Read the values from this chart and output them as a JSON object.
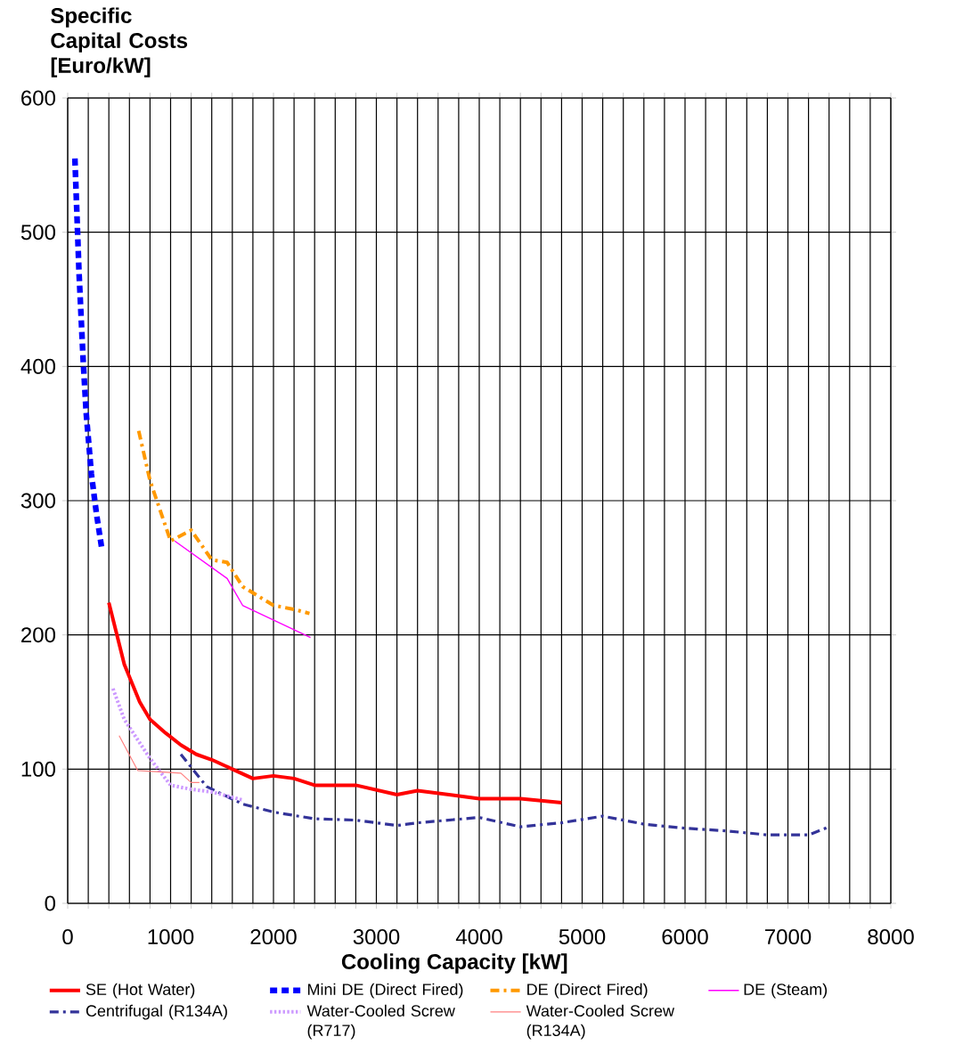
{
  "chart_data": {
    "type": "line",
    "ylabel": "Specific Capital Costs [Euro/kW]",
    "xlabel": "Cooling Capacity [kW]",
    "xlim": [
      0,
      8000
    ],
    "ylim": [
      0,
      600
    ],
    "xticks": [
      0,
      {
        "value": 200,
        "label": null
      },
      {
        "value": 400,
        "label": null
      },
      {
        "value": 600,
        "label": null
      },
      {
        "value": 800,
        "label": null
      },
      1000,
      {
        "value": 1200,
        "label": null
      },
      {
        "value": 1400,
        "label": null
      },
      {
        "value": 1600,
        "label": null
      },
      {
        "value": 1800,
        "label": null
      },
      2000,
      {
        "value": 2200,
        "label": null
      },
      {
        "value": 2400,
        "label": null
      },
      {
        "value": 2600,
        "label": null
      },
      {
        "value": 2800,
        "label": null
      },
      3000,
      {
        "value": 3200,
        "label": null
      },
      {
        "value": 3400,
        "label": null
      },
      {
        "value": 3600,
        "label": null
      },
      {
        "value": 3800,
        "label": null
      },
      4000,
      {
        "value": 4200,
        "label": null
      },
      {
        "value": 4400,
        "label": null
      },
      {
        "value": 4600,
        "label": null
      },
      {
        "value": 4800,
        "label": null
      },
      5000,
      {
        "value": 5200,
        "label": null
      },
      {
        "value": 5400,
        "label": null
      },
      {
        "value": 5600,
        "label": null
      },
      {
        "value": 5800,
        "label": null
      },
      6000,
      {
        "value": 6200,
        "label": null
      },
      {
        "value": 6400,
        "label": null
      },
      {
        "value": 6600,
        "label": null
      },
      {
        "value": 6800,
        "label": null
      },
      7000,
      {
        "value": 7200,
        "label": null
      },
      {
        "value": 7400,
        "label": null
      },
      {
        "value": 7600,
        "label": null
      },
      {
        "value": 7800,
        "label": null
      },
      8000
    ],
    "yticks": [
      0,
      100,
      200,
      300,
      400,
      500,
      600
    ],
    "grid": true,
    "legend": "bottom",
    "marker": "none",
    "series": [
      {
        "name": "SE (Hot Water)",
        "color": "#ff0000",
        "line_style": "solid",
        "x": [
          400,
          550,
          700,
          800,
          950,
          1100,
          1250,
          1400,
          1600,
          1800,
          2000,
          2200,
          2400,
          2800,
          3200,
          3400,
          4000,
          4400,
          4800
        ],
        "values": [
          224,
          178,
          150,
          137,
          127,
          118,
          111,
          107,
          100,
          93,
          95,
          93,
          88,
          88,
          81,
          84,
          78,
          78,
          75
        ]
      },
      {
        "name": "Mini DE (Direct Fired)",
        "color": "#0000ff",
        "line_style": "dashed",
        "x": [
          70,
          110,
          150,
          180,
          230,
          280,
          330
        ],
        "values": [
          555,
          470,
          405,
          365,
          320,
          290,
          265
        ]
      },
      {
        "name": "DE (Direct Fired)",
        "color": "#ff9900",
        "line_style": "dashdot",
        "x": [
          690,
          800,
          1000,
          1200,
          1400,
          1550,
          1700,
          2000,
          2200,
          2350
        ],
        "values": [
          352,
          315,
          270,
          278,
          256,
          254,
          236,
          222,
          219,
          216
        ]
      },
      {
        "name": "DE (Steam)",
        "color": "#ff00ff",
        "line_style": "solid",
        "x": [
          1040,
          1550,
          1700,
          2360
        ],
        "values": [
          270,
          242,
          222,
          198
        ]
      },
      {
        "name": "Centrifugal (R134A)",
        "color": "#333399",
        "line_style": "dashdot",
        "x": [
          1100,
          1350,
          1700,
          2000,
          2400,
          2800,
          3200,
          3400,
          4000,
          4400,
          4800,
          5200,
          5600,
          6000,
          6400,
          6800,
          7200,
          7400
        ],
        "values": [
          111,
          87,
          74,
          68,
          63,
          62,
          58,
          60,
          64,
          57,
          60,
          65,
          59,
          56,
          54,
          51,
          51,
          57
        ]
      },
      {
        "name": "Water-Cooled Screw (R717)",
        "color": "#cc99ff",
        "line_style": "dotted",
        "x": [
          440,
          550,
          800,
          1000,
          1200,
          1400,
          1700
        ],
        "values": [
          160,
          137,
          108,
          88,
          85,
          83,
          77
        ]
      },
      {
        "name": "Water-Cooled Screw (R134A)",
        "color": "#ff8080",
        "line_style": "solid",
        "x": [
          500,
          680,
          1100,
          1200,
          1280
        ],
        "values": [
          125,
          99,
          97,
          90,
          90
        ]
      }
    ]
  }
}
